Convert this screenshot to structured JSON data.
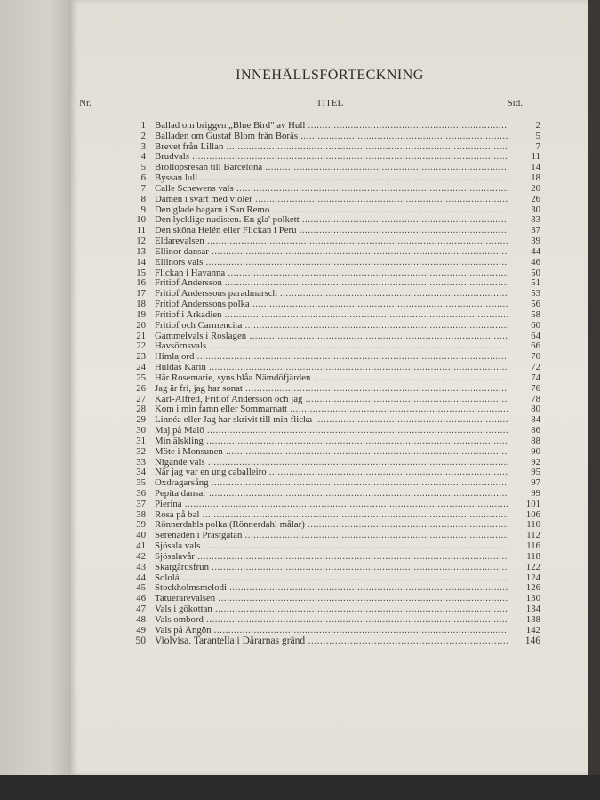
{
  "page": {
    "title": "INNEHÅLLSFÖRTECKNING",
    "headers": {
      "nr": "Nr.",
      "titel": "TITEL",
      "sid": "Sid."
    },
    "entries": [
      {
        "nr": "1",
        "title": "Ballad om briggen „Blue Bird\" av Hull",
        "page": "2"
      },
      {
        "nr": "2",
        "title": "Balladen om Gustaf Blom från Borås",
        "page": "5"
      },
      {
        "nr": "3",
        "title": "Brevet från Lillan",
        "page": "7"
      },
      {
        "nr": "4",
        "title": "Brudvals",
        "page": "11"
      },
      {
        "nr": "5",
        "title": "Bröllopsresan till Barcelona",
        "page": "14"
      },
      {
        "nr": "6",
        "title": "Byssan lull",
        "page": "18"
      },
      {
        "nr": "7",
        "title": "Calle Schewens vals",
        "page": "20"
      },
      {
        "nr": "8",
        "title": "Damen i svart med violer",
        "page": "26"
      },
      {
        "nr": "9",
        "title": "Den glade bagarn i San Remo",
        "page": "30"
      },
      {
        "nr": "10",
        "title": "Den lycklige nudisten. En gla' polkett",
        "page": "33"
      },
      {
        "nr": "11",
        "title": "Den sköna Helén eller Flickan i Peru",
        "page": "37"
      },
      {
        "nr": "12",
        "title": "Eldarevalsen",
        "page": "39"
      },
      {
        "nr": "13",
        "title": "Ellinor dansar",
        "page": "44"
      },
      {
        "nr": "14",
        "title": "Ellinors vals",
        "page": "46"
      },
      {
        "nr": "15",
        "title": "Flickan i Havanna",
        "page": "50"
      },
      {
        "nr": "16",
        "title": "Fritiof Andersson",
        "page": "51"
      },
      {
        "nr": "17",
        "title": "Fritiof Anderssons paradmarsch",
        "page": "53"
      },
      {
        "nr": "18",
        "title": "Fritiof Anderssons polka",
        "page": "56"
      },
      {
        "nr": "19",
        "title": "Fritiof i Arkadien",
        "page": "58"
      },
      {
        "nr": "20",
        "title": "Fritiof och Carmencita",
        "page": "60"
      },
      {
        "nr": "21",
        "title": "Gammelvals i Roslagen",
        "page": "64"
      },
      {
        "nr": "22",
        "title": "Havsörnsvals",
        "page": "66"
      },
      {
        "nr": "23",
        "title": "Himlajord",
        "page": "70"
      },
      {
        "nr": "24",
        "title": "Huldas Karin",
        "page": "72"
      },
      {
        "nr": "25",
        "title": "Här Rosemarie, syns blåa Nämdöfjärden",
        "page": "74"
      },
      {
        "nr": "26",
        "title": "Jag är fri, jag har sonat",
        "page": "76"
      },
      {
        "nr": "27",
        "title": "Karl-Alfred, Fritiof Andersson och jag",
        "page": "78"
      },
      {
        "nr": "28",
        "title": "Kom i min famn eller Sommarnatt",
        "page": "80"
      },
      {
        "nr": "29",
        "title": "Linnéa eller Jag har skrivit till min flicka",
        "page": "84"
      },
      {
        "nr": "30",
        "title": "Maj på Malö",
        "page": "86"
      },
      {
        "nr": "31",
        "title": "Min älskling",
        "page": "88"
      },
      {
        "nr": "32",
        "title": "Möte i Monsunen",
        "page": "90"
      },
      {
        "nr": "33",
        "title": "Nigande vals",
        "page": "92"
      },
      {
        "nr": "34",
        "title": "När jag var en ung caballeiro",
        "page": "95"
      },
      {
        "nr": "35",
        "title": "Oxdragarsång",
        "page": "97"
      },
      {
        "nr": "36",
        "title": "Pepita dansar",
        "page": "99"
      },
      {
        "nr": "37",
        "title": "Pierina",
        "page": "101"
      },
      {
        "nr": "38",
        "title": "Rosa på bal",
        "page": "106"
      },
      {
        "nr": "39",
        "title": "Rönnerdahls polka (Rönnerdahl målar)",
        "page": "110"
      },
      {
        "nr": "40",
        "title": "Serenaden i Prästgatan",
        "page": "112"
      },
      {
        "nr": "41",
        "title": "Sjösala vals",
        "page": "116"
      },
      {
        "nr": "42",
        "title": "Sjösalavår",
        "page": "118"
      },
      {
        "nr": "43",
        "title": "Skärgårdsfrun",
        "page": "122"
      },
      {
        "nr": "44",
        "title": "Sololá",
        "page": "124"
      },
      {
        "nr": "45",
        "title": "Stockholmsmelodi",
        "page": "126"
      },
      {
        "nr": "46",
        "title": "Tatuerarevalsen",
        "page": "130"
      },
      {
        "nr": "47",
        "title": "Vals i gökottan",
        "page": "134"
      },
      {
        "nr": "48",
        "title": "Vals ombord",
        "page": "138"
      },
      {
        "nr": "49",
        "title": "Vals på Ängön",
        "page": "142"
      },
      {
        "nr": "50",
        "title": "Violvisa. Tarantella i Dårarnas gränd",
        "page": "146"
      }
    ]
  }
}
